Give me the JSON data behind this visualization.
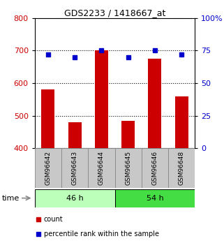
{
  "title": "GDS2233 / 1418667_at",
  "samples": [
    "GSM96642",
    "GSM96643",
    "GSM96644",
    "GSM96645",
    "GSM96646",
    "GSM96648"
  ],
  "count_values": [
    580,
    480,
    700,
    485,
    675,
    560
  ],
  "percentile_values": [
    72,
    70,
    75,
    70,
    75,
    72
  ],
  "ylim_left": [
    400,
    800
  ],
  "ylim_right": [
    0,
    100
  ],
  "yticks_left": [
    400,
    500,
    600,
    700,
    800
  ],
  "yticks_right": [
    0,
    25,
    50,
    75,
    100
  ],
  "ytick_labels_right": [
    "0",
    "25",
    "50",
    "75",
    "100%"
  ],
  "bar_color": "#cc0000",
  "dot_color": "#0000cc",
  "group1_label": "46 h",
  "group2_label": "54 h",
  "group1_color": "#bbffbb",
  "group2_color": "#44dd44",
  "group1_indices": [
    0,
    1,
    2
  ],
  "group2_indices": [
    3,
    4,
    5
  ],
  "gridline_color": "#000000",
  "gridline_style": "dotted",
  "background_color": "#ffffff",
  "plot_bg_color": "#ffffff",
  "time_label": "time",
  "legend_count_label": "count",
  "legend_pct_label": "percentile rank within the sample",
  "tick_label_color_left": "#cc0000",
  "tick_label_color_right": "#0000cc",
  "label_cell_color": "#c8c8c8"
}
